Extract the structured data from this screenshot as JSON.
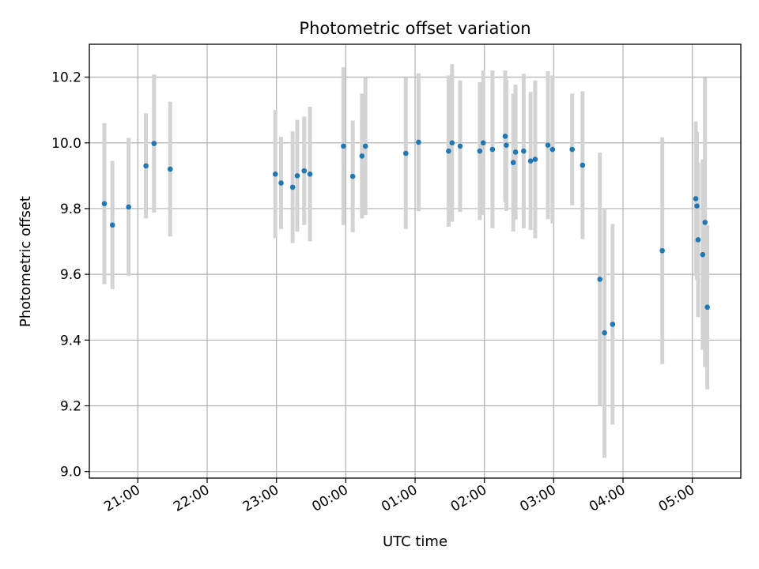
{
  "chart_data": {
    "type": "scatter",
    "title": "Photometric offset variation",
    "xlabel": "UTC time",
    "ylabel": "Photometric offset",
    "ylim": [
      8.98,
      10.3
    ],
    "xlim": [
      "20:18",
      "05:42"
    ],
    "grid": true,
    "legend": "none",
    "x_ticks": [
      "21:00",
      "22:00",
      "23:00",
      "00:00",
      "01:00",
      "02:00",
      "03:00",
      "04:00",
      "05:00"
    ],
    "y_ticks": [
      "9.0",
      "9.2",
      "9.4",
      "9.6",
      "9.8",
      "10.0",
      "10.2"
    ],
    "colors": {
      "point": "#1f77b4",
      "errorbar": "#d3d3d3",
      "grid": "#b0b0b0"
    },
    "points": [
      {
        "t": "20:31",
        "y": 9.815,
        "err": 0.245
      },
      {
        "t": "20:38",
        "y": 9.75,
        "err": 0.195
      },
      {
        "t": "20:52",
        "y": 9.805,
        "err": 0.21
      },
      {
        "t": "21:07",
        "y": 9.93,
        "err": 0.16
      },
      {
        "t": "21:14",
        "y": 9.998,
        "err": 0.21
      },
      {
        "t": "21:28",
        "y": 9.92,
        "err": 0.205
      },
      {
        "t": "22:59",
        "y": 9.905,
        "err": 0.195
      },
      {
        "t": "23:04",
        "y": 9.878,
        "err": 0.14
      },
      {
        "t": "23:14",
        "y": 9.865,
        "err": 0.17
      },
      {
        "t": "23:18",
        "y": 9.9,
        "err": 0.17
      },
      {
        "t": "23:24",
        "y": 9.915,
        "err": 0.165
      },
      {
        "t": "23:29",
        "y": 9.905,
        "err": 0.205
      },
      {
        "t": "23:58",
        "y": 9.99,
        "err": 0.24
      },
      {
        "t": "00:06",
        "y": 9.898,
        "err": 0.17
      },
      {
        "t": "00:14",
        "y": 9.96,
        "err": 0.19
      },
      {
        "t": "00:17",
        "y": 9.99,
        "err": 0.21
      },
      {
        "t": "00:52",
        "y": 9.968,
        "err": 0.23
      },
      {
        "t": "01:03",
        "y": 10.002,
        "err": 0.21
      },
      {
        "t": "01:29",
        "y": 9.975,
        "err": 0.23
      },
      {
        "t": "01:32",
        "y": 10.0,
        "err": 0.24
      },
      {
        "t": "01:39",
        "y": 9.99,
        "err": 0.2
      },
      {
        "t": "01:56",
        "y": 9.975,
        "err": 0.21
      },
      {
        "t": "01:59",
        "y": 10.0,
        "err": 0.22
      },
      {
        "t": "02:07",
        "y": 9.98,
        "err": 0.24
      },
      {
        "t": "02:18",
        "y": 10.02,
        "err": 0.2
      },
      {
        "t": "02:19",
        "y": 9.993,
        "err": 0.2
      },
      {
        "t": "02:25",
        "y": 9.94,
        "err": 0.21
      },
      {
        "t": "02:27",
        "y": 9.972,
        "err": 0.205
      },
      {
        "t": "02:34",
        "y": 9.975,
        "err": 0.235
      },
      {
        "t": "02:40",
        "y": 9.945,
        "err": 0.21
      },
      {
        "t": "02:44",
        "y": 9.95,
        "err": 0.24
      },
      {
        "t": "02:55",
        "y": 9.993,
        "err": 0.225
      },
      {
        "t": "02:59",
        "y": 9.98,
        "err": 0.225
      },
      {
        "t": "03:16",
        "y": 9.98,
        "err": 0.17
      },
      {
        "t": "03:25",
        "y": 9.932,
        "err": 0.225
      },
      {
        "t": "03:40",
        "y": 9.585,
        "err": 0.385
      },
      {
        "t": "03:44",
        "y": 9.422,
        "err": 0.38
      },
      {
        "t": "03:51",
        "y": 9.448,
        "err": 0.305
      },
      {
        "t": "04:34",
        "y": 9.672,
        "err": 0.345
      },
      {
        "t": "05:03",
        "y": 9.83,
        "err": 0.235
      },
      {
        "t": "05:04",
        "y": 9.808,
        "err": 0.225
      },
      {
        "t": "05:05",
        "y": 9.705,
        "err": 0.235
      },
      {
        "t": "05:09",
        "y": 9.66,
        "err": 0.29
      },
      {
        "t": "05:11",
        "y": 9.758,
        "err": 0.44
      },
      {
        "t": "05:13",
        "y": 9.5,
        "err": 0.25
      }
    ]
  }
}
